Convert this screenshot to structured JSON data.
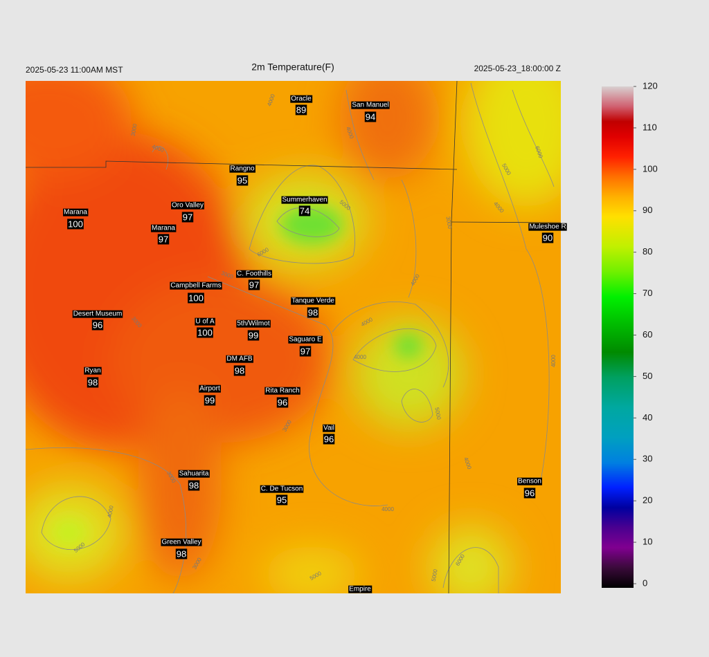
{
  "header": {
    "left": "2025-05-23 11:00AM MST",
    "title": "2m Temperature(F)",
    "right": "2025-05-23_18:00:00 Z"
  },
  "stations": [
    {
      "name": "Oracle",
      "value": "89"
    },
    {
      "name": "San Manuel",
      "value": "94"
    },
    {
      "name": "Rangno",
      "value": "95"
    },
    {
      "name": "Summerhaven",
      "value": "74"
    },
    {
      "name": "Oro Valley",
      "value": "97"
    },
    {
      "name": "Marana",
      "value": "100"
    },
    {
      "name": "Marana",
      "value": "97"
    },
    {
      "name": "Muleshoe R",
      "value": "90"
    },
    {
      "name": "C. Foothills",
      "value": "97"
    },
    {
      "name": "Campbell Farms",
      "value": "100"
    },
    {
      "name": "Tanque Verde",
      "value": "98"
    },
    {
      "name": "Desert Museum",
      "value": "96"
    },
    {
      "name": "U of A",
      "value": "100"
    },
    {
      "name": "5th/Wilmot",
      "value": "99"
    },
    {
      "name": "Saguaro E",
      "value": "97"
    },
    {
      "name": "DM AFB",
      "value": "98"
    },
    {
      "name": "Ryan",
      "value": "98"
    },
    {
      "name": "Airport",
      "value": "99"
    },
    {
      "name": "Rita Ranch",
      "value": "96"
    },
    {
      "name": "Vail",
      "value": "96"
    },
    {
      "name": "Sahuarita",
      "value": "98"
    },
    {
      "name": "C. De Tucson",
      "value": "95"
    },
    {
      "name": "Benson",
      "value": "96"
    },
    {
      "name": "Green Valley",
      "value": "98"
    },
    {
      "name": "Empire"
    }
  ],
  "contour_labels": [
    "4000",
    "3000",
    "4000",
    "4000",
    "6000",
    "5000",
    "4000",
    "3000",
    "6000",
    "5000",
    "3000",
    "4000",
    "3000",
    "4000",
    "4000",
    "5000",
    "4000",
    "3000",
    "4000",
    "3000",
    "4000",
    "5000",
    "3000",
    "5000",
    "5000",
    "6000",
    "4000"
  ],
  "colorbar": {
    "range": [
      0,
      121
    ],
    "ticks": [
      0,
      10,
      20,
      30,
      40,
      50,
      60,
      70,
      80,
      90,
      100,
      110,
      120
    ]
  }
}
